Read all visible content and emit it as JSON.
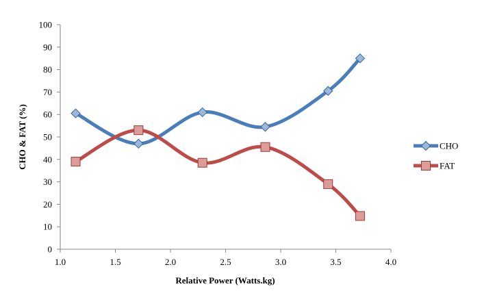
{
  "chart_data": {
    "type": "line",
    "title": "",
    "xlabel": "Relative Power (Watts.kg)",
    "ylabel": "CHO & FAT (%)",
    "xlim": [
      1.0,
      4.0
    ],
    "ylim": [
      0,
      100
    ],
    "xticks": [
      "1.0",
      "1.5",
      "2.0",
      "2.5",
      "3.0",
      "3.5",
      "4.0"
    ],
    "yticks": [
      "0",
      "10",
      "20",
      "30",
      "40",
      "50",
      "60",
      "70",
      "80",
      "90",
      "100"
    ],
    "grid": false,
    "legend_position": "right",
    "smooth": true,
    "series": [
      {
        "name": "CHO",
        "color": "#4a7ebb",
        "marker": "diamond",
        "x": [
          1.14,
          1.71,
          2.29,
          2.86,
          3.43,
          3.72
        ],
        "y": [
          60.5,
          47.0,
          61.0,
          54.5,
          70.5,
          85.0
        ]
      },
      {
        "name": "FAT",
        "color": "#be4b48",
        "marker": "square",
        "x": [
          1.14,
          1.71,
          2.29,
          2.86,
          3.43,
          3.72
        ],
        "y": [
          39.0,
          53.0,
          38.5,
          45.5,
          29.0,
          14.8
        ]
      }
    ]
  }
}
